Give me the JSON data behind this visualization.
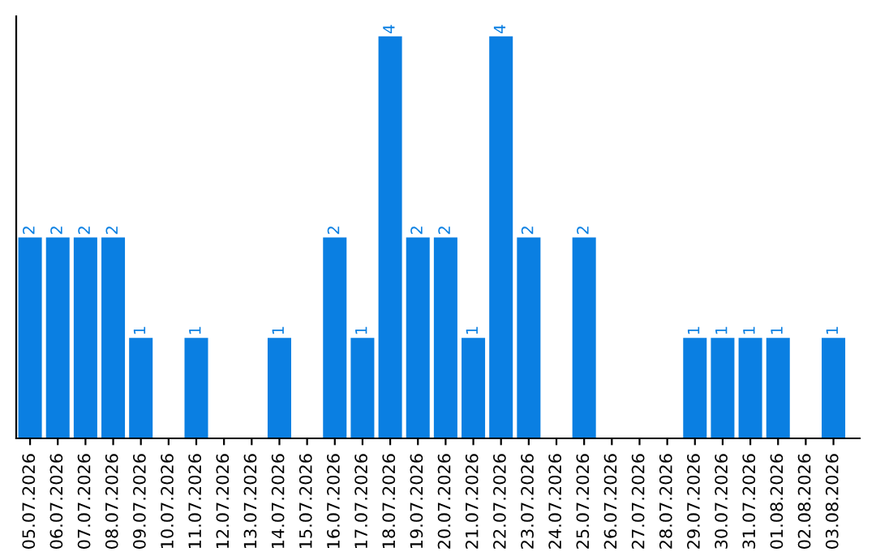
{
  "chart_data": {
    "type": "bar",
    "categories": [
      "05.07.2026",
      "06.07.2026",
      "07.07.2026",
      "08.07.2026",
      "09.07.2026",
      "10.07.2026",
      "11.07.2026",
      "12.07.2026",
      "13.07.2026",
      "14.07.2026",
      "15.07.2026",
      "16.07.2026",
      "17.07.2026",
      "18.07.2026",
      "19.07.2026",
      "20.07.2026",
      "21.07.2026",
      "22.07.2026",
      "23.07.2026",
      "24.07.2026",
      "25.07.2026",
      "26.07.2026",
      "27.07.2026",
      "28.07.2026",
      "29.07.2026",
      "30.07.2026",
      "31.07.2026",
      "01.08.2026",
      "02.08.2026",
      "03.08.2026"
    ],
    "values": [
      2,
      2,
      2,
      2,
      1,
      0,
      1,
      0,
      0,
      1,
      0,
      2,
      1,
      4,
      2,
      2,
      1,
      4,
      2,
      0,
      2,
      0,
      0,
      0,
      1,
      1,
      1,
      1,
      0,
      1
    ],
    "value_labels": [
      "2",
      "2",
      "2",
      "2",
      "1",
      null,
      "1",
      null,
      null,
      "1",
      null,
      "2",
      "1",
      "4",
      "2",
      "2",
      "1",
      "4",
      "2",
      null,
      "2",
      null,
      null,
      null,
      "1",
      "1",
      "1",
      "1",
      null,
      "1"
    ],
    "color": "#0a7fe2",
    "tick_labels": "x",
    "grid": false,
    "legend": false
  }
}
